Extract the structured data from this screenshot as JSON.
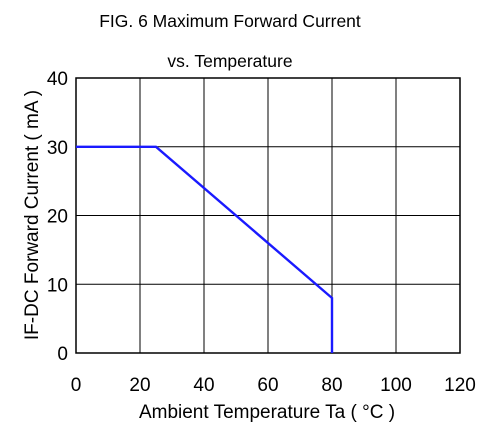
{
  "chart_data": {
    "type": "line",
    "title_lines": [
      "FIG. 6   Maximum Forward Current",
      "vs. Temperature"
    ],
    "xlabel": "Ambient Temperature Ta ( °C )",
    "ylabel": "IF-DC  Forward Current ( mA )",
    "xlim": [
      0,
      120
    ],
    "ylim": [
      0,
      40
    ],
    "x_ticks": [
      0,
      20,
      40,
      60,
      80,
      100,
      120
    ],
    "y_ticks": [
      0,
      10,
      20,
      30,
      40
    ],
    "grid": true,
    "series": [
      {
        "color": "#1a1aff",
        "points": [
          [
            0,
            30
          ],
          [
            25,
            30
          ],
          [
            80,
            8
          ],
          [
            80,
            0
          ]
        ]
      }
    ]
  }
}
